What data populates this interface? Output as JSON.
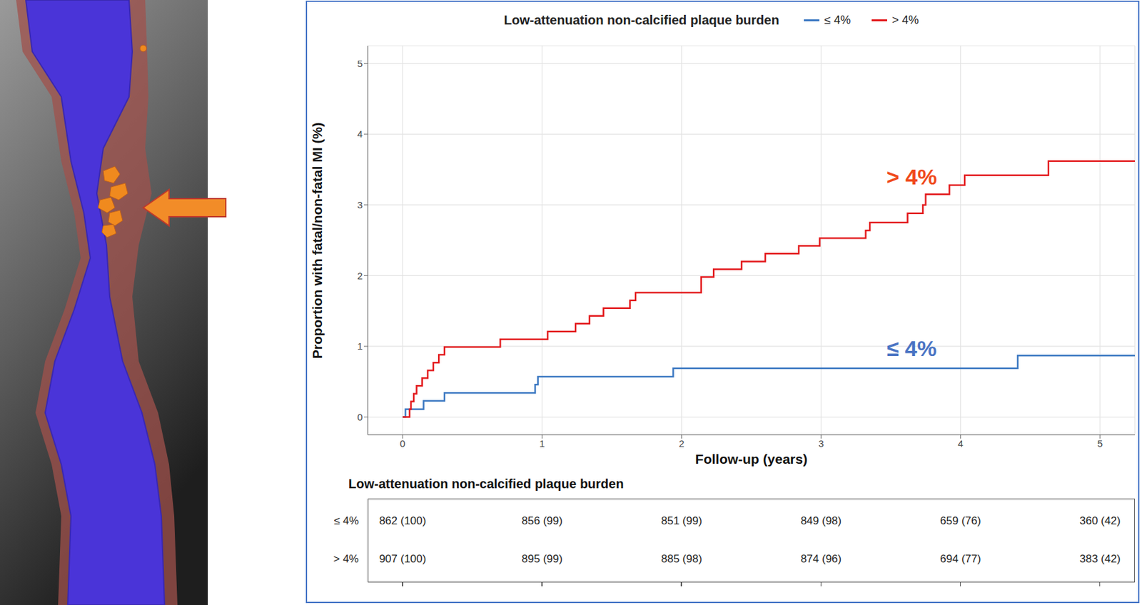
{
  "chart_data": {
    "type": "line",
    "legend_title": "Low-attenuation non-calcified plaque burden",
    "x_label": "Follow-up (years)",
    "y_label": "Proportion with fatal/non-fatal MI (%)",
    "xlim": [
      -0.25,
      5.25
    ],
    "xticks": [
      0,
      1,
      2,
      3,
      4,
      5
    ],
    "ylim": [
      -0.25,
      5.25
    ],
    "yticks": [
      0,
      1,
      2,
      3,
      4,
      5
    ],
    "grid": true,
    "legend": "top",
    "line_style": "step",
    "series": [
      {
        "name": "≤ 4%",
        "color": "#3b78c2",
        "x": [
          0,
          0.02,
          0.15,
          0.3,
          0.95,
          0.97,
          1.94,
          4.41,
          5.25
        ],
        "values": [
          0,
          0.11,
          0.23,
          0.34,
          0.46,
          0.57,
          0.69,
          0.87,
          0.87
        ]
      },
      {
        "name": "> 4%",
        "color": "#e3191c",
        "x": [
          0,
          0.05,
          0.06,
          0.08,
          0.1,
          0.14,
          0.18,
          0.22,
          0.26,
          0.3,
          0.7,
          1.04,
          1.24,
          1.34,
          1.44,
          1.63,
          1.67,
          2.14,
          2.23,
          2.43,
          2.6,
          2.84,
          2.99,
          3.32,
          3.35,
          3.62,
          3.73,
          3.75,
          3.92,
          4.03,
          4.63,
          5.25
        ],
        "values": [
          0,
          0.11,
          0.22,
          0.33,
          0.44,
          0.55,
          0.66,
          0.77,
          0.88,
          0.99,
          1.1,
          1.21,
          1.32,
          1.43,
          1.54,
          1.65,
          1.76,
          1.98,
          2.09,
          2.2,
          2.31,
          2.42,
          2.53,
          2.64,
          2.75,
          2.88,
          3.0,
          3.15,
          3.28,
          3.42,
          3.62,
          3.62
        ]
      }
    ],
    "annotations": [
      {
        "text": "> 4%",
        "x": 3.65,
        "y": 3.4,
        "color": "#f04a1c"
      },
      {
        "text": "≤ 4%",
        "x": 3.65,
        "y": 0.97,
        "color": "#4a74c4"
      }
    ],
    "risk_table": {
      "title": "Low-attenuation non-calcified plaque burden",
      "times": [
        0,
        1,
        2,
        3,
        4,
        5
      ],
      "rows": [
        {
          "label": "≤ 4%",
          "cells": [
            "862 (100)",
            "856 (99)",
            "851 (99)",
            "849 (98)",
            "659 (76)",
            "360 (42)"
          ]
        },
        {
          "label": "> 4%",
          "cells": [
            "907 (100)",
            "895 (99)",
            "885 (98)",
            "874 (96)",
            "694 (77)",
            "383 (42)"
          ]
        }
      ]
    }
  }
}
